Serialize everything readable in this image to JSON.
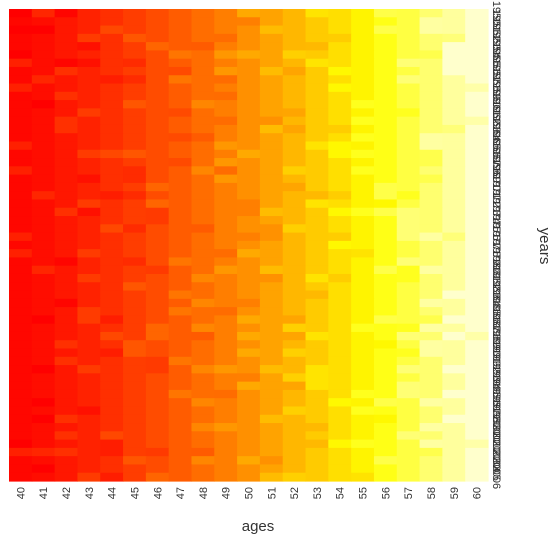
{
  "chart_data": {
    "type": "heatmap",
    "xlabel": "ages",
    "ylabel": "years",
    "x": [
      40,
      41,
      42,
      43,
      44,
      45,
      46,
      47,
      48,
      49,
      50,
      51,
      52,
      53,
      54,
      55,
      56,
      57,
      58,
      59,
      60
    ],
    "y": [
      1950,
      1951,
      1952,
      1953,
      1954,
      1955,
      1956,
      1957,
      1958,
      1959,
      1960,
      1961,
      1962,
      1963,
      1964,
      1965,
      1966,
      1967,
      1968,
      1969,
      1970,
      1971,
      1972,
      1973,
      1974,
      1975,
      1976,
      1977,
      1978,
      1979,
      1980,
      1981,
      1982,
      1983,
      1984,
      1985,
      1986,
      1987,
      1988,
      1989,
      1990,
      1991,
      1992,
      1993,
      1994,
      1995,
      1996,
      1997,
      1998,
      1999,
      2000,
      2001,
      2002,
      2003,
      2004,
      2005,
      2006
    ],
    "color_scale": [
      "#ff0000",
      "#ff3300",
      "#ff6600",
      "#ff9900",
      "#ffcc00",
      "#ffff00",
      "#ffff66",
      "#ffffcc"
    ],
    "value_range": [
      0,
      1
    ],
    "legend": "none",
    "grid": false
  }
}
